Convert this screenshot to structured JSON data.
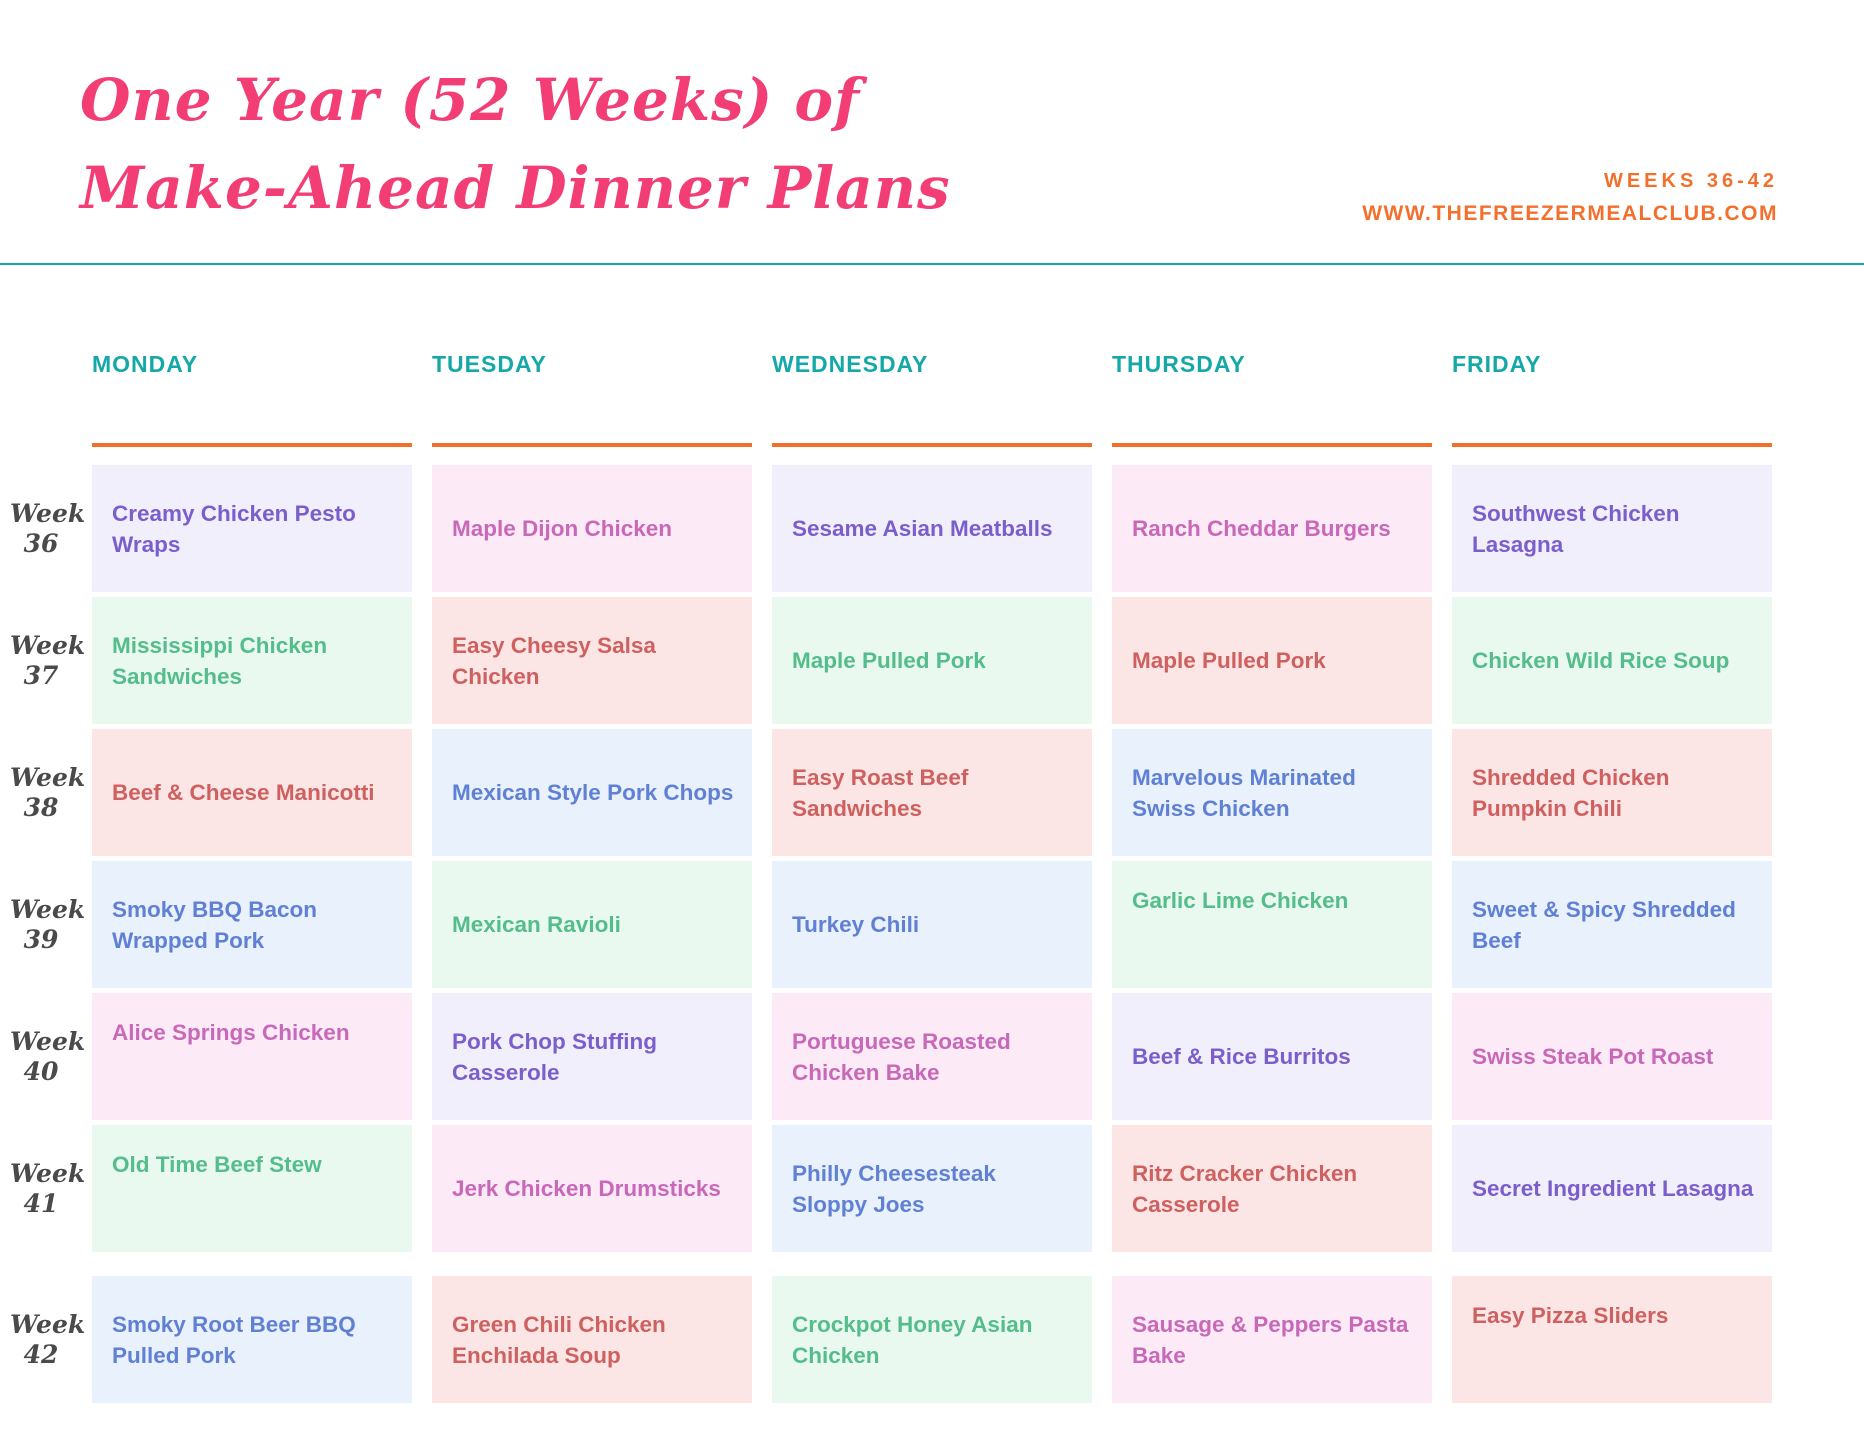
{
  "header": {
    "title_line1": "One Year (52 Weeks) of",
    "title_line2": "Make-Ahead Dinner Plans",
    "weeks_range": "WEEKS 36-42",
    "website": "WWW.THEFREEZERMEALCLUB.COM"
  },
  "columns": [
    "MONDAY",
    "TUESDAY",
    "WEDNESDAY",
    "THURSDAY",
    "FRIDAY"
  ],
  "week_word": "Week",
  "palette": {
    "title_pink": "#F23E75",
    "orange": "#F2702C",
    "teal": "#16A8A8",
    "week_label_gray": "#4A4A4A",
    "lavender_bg": "#F1EFFB",
    "lavender_text": "#7B5ECC",
    "pink_bg": "#FCEAF7",
    "pink_text": "#C868B8",
    "green_bg": "#E9F9EF",
    "green_text": "#54BD8B",
    "red_bg": "#FBE6E5",
    "red_text": "#CE6060",
    "blue_bg": "#E9F1FC",
    "blue_text": "#6080D4"
  },
  "rows": [
    {
      "week": "36",
      "meals": [
        {
          "text": "Creamy Chicken Pesto Wraps",
          "theme": "lavender"
        },
        {
          "text": "Maple Dijon Chicken",
          "theme": "pink"
        },
        {
          "text": "Sesame Asian Meatballs",
          "theme": "lavender"
        },
        {
          "text": "Ranch Cheddar Burgers",
          "theme": "pink"
        },
        {
          "text": "Southwest Chicken Lasagna",
          "theme": "lavender"
        }
      ]
    },
    {
      "week": "37",
      "meals": [
        {
          "text": "Mississippi Chicken Sandwiches",
          "theme": "green"
        },
        {
          "text": "Easy Cheesy Salsa Chicken",
          "theme": "red"
        },
        {
          "text": "Maple Pulled Pork",
          "theme": "green"
        },
        {
          "text": "Maple Pulled Pork",
          "theme": "red"
        },
        {
          "text": "Chicken Wild Rice Soup",
          "theme": "green"
        }
      ]
    },
    {
      "week": "38",
      "meals": [
        {
          "text": "Beef & Cheese Manicotti",
          "theme": "red"
        },
        {
          "text": "Mexican Style Pork Chops",
          "theme": "blue"
        },
        {
          "text": "Easy Roast Beef Sandwiches",
          "theme": "red"
        },
        {
          "text": "Marvelous Marinated Swiss Chicken",
          "theme": "blue"
        },
        {
          "text": "Shredded Chicken Pumpkin Chili",
          "theme": "red"
        }
      ]
    },
    {
      "week": "39",
      "meals": [
        {
          "text": "Smoky BBQ Bacon Wrapped Pork",
          "theme": "blue"
        },
        {
          "text": "Mexican Ravioli",
          "theme": "green"
        },
        {
          "text": "Turkey Chili",
          "theme": "blue"
        },
        {
          "text": "Garlic Lime Chicken",
          "theme": "green",
          "valign": "top"
        },
        {
          "text": "Sweet & Spicy Shredded Beef",
          "theme": "blue"
        }
      ]
    },
    {
      "week": "40",
      "meals": [
        {
          "text": "Alice Springs Chicken",
          "theme": "pink",
          "valign": "top"
        },
        {
          "text": "Pork Chop Stuffing Casserole",
          "theme": "lavender"
        },
        {
          "text": "Portuguese Roasted Chicken Bake",
          "theme": "pink"
        },
        {
          "text": "Beef & Rice Burritos",
          "theme": "lavender"
        },
        {
          "text": "Swiss Steak Pot Roast",
          "theme": "pink"
        }
      ]
    },
    {
      "week": "41",
      "meals": [
        {
          "text": "Old Time Beef Stew",
          "theme": "green",
          "valign": "top"
        },
        {
          "text": "Jerk Chicken Drumsticks",
          "theme": "pink"
        },
        {
          "text": "Philly Cheesesteak Sloppy Joes",
          "theme": "blue"
        },
        {
          "text": "Ritz Cracker Chicken Casserole",
          "theme": "red"
        },
        {
          "text": "Secret Ingredient Lasagna",
          "theme": "lavender"
        }
      ]
    },
    {
      "week": "42",
      "meals": [
        {
          "text": "Smoky Root Beer BBQ Pulled Pork",
          "theme": "blue"
        },
        {
          "text": "Green Chili Chicken Enchilada Soup",
          "theme": "red"
        },
        {
          "text": "Crockpot Honey Asian Chicken",
          "theme": "green"
        },
        {
          "text": "Sausage & Peppers Pasta Bake",
          "theme": "pink"
        },
        {
          "text": "Easy Pizza Sliders",
          "theme": "red",
          "valign": "top"
        }
      ]
    }
  ]
}
